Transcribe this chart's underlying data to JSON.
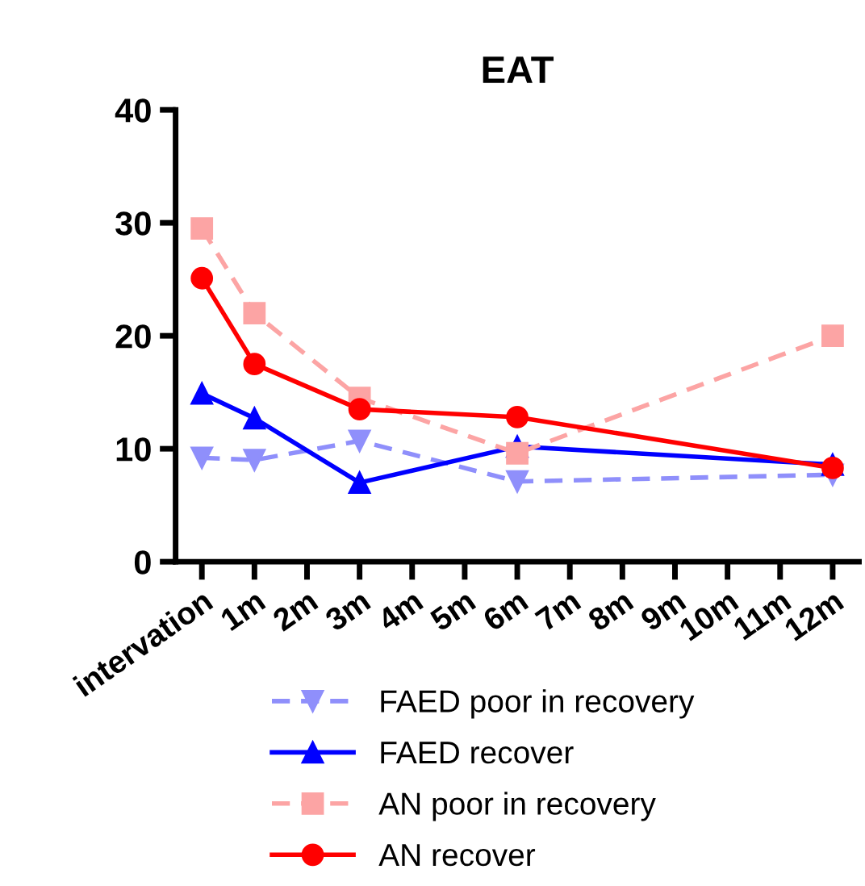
{
  "chart_data": {
    "type": "line",
    "title": "EAT",
    "xlim": [
      -0.5,
      12.5
    ],
    "xticks": [
      {
        "value": 0,
        "label": "intervation"
      },
      {
        "value": 1,
        "label": "1m"
      },
      {
        "value": 2,
        "label": "2m"
      },
      {
        "value": 3,
        "label": "3m"
      },
      {
        "value": 4,
        "label": "4m"
      },
      {
        "value": 5,
        "label": "5m"
      },
      {
        "value": 6,
        "label": "6m"
      },
      {
        "value": 7,
        "label": "7m"
      },
      {
        "value": 8,
        "label": "8m"
      },
      {
        "value": 9,
        "label": "9m"
      },
      {
        "value": 10,
        "label": "10m"
      },
      {
        "value": 11,
        "label": "11m"
      },
      {
        "value": 12,
        "label": "12m"
      }
    ],
    "ylim": [
      0,
      40
    ],
    "yticks": [
      0,
      10,
      20,
      30,
      40
    ],
    "grid": false,
    "legend": "bottom",
    "series": [
      {
        "name": "FAED poor in recovery",
        "color": "#8f8ffb",
        "x": [
          0,
          1,
          3,
          6,
          12
        ],
        "values": [
          9.2,
          9.0,
          10.7,
          7.1,
          7.7
        ],
        "marker": "triangle_down",
        "line_style": "dashed"
      },
      {
        "name": "FAED recover",
        "color": "#0000ff",
        "x": [
          0,
          1,
          3,
          6,
          12
        ],
        "values": [
          14.9,
          12.7,
          7.0,
          10.2,
          8.6
        ],
        "marker": "triangle",
        "line_style": "solid"
      },
      {
        "name": "AN poor in recovery",
        "color": "#fca4a4",
        "x": [
          0,
          1,
          3,
          6,
          12
        ],
        "values": [
          29.5,
          22.0,
          14.5,
          9.6,
          20.0
        ],
        "marker": "square",
        "line_style": "dashed"
      },
      {
        "name": "AN recover",
        "color": "#ff0000",
        "x": [
          0,
          1,
          3,
          6,
          12
        ],
        "values": [
          25.1,
          17.5,
          13.5,
          12.8,
          8.3
        ],
        "marker": "circle",
        "line_style": "solid"
      }
    ]
  }
}
